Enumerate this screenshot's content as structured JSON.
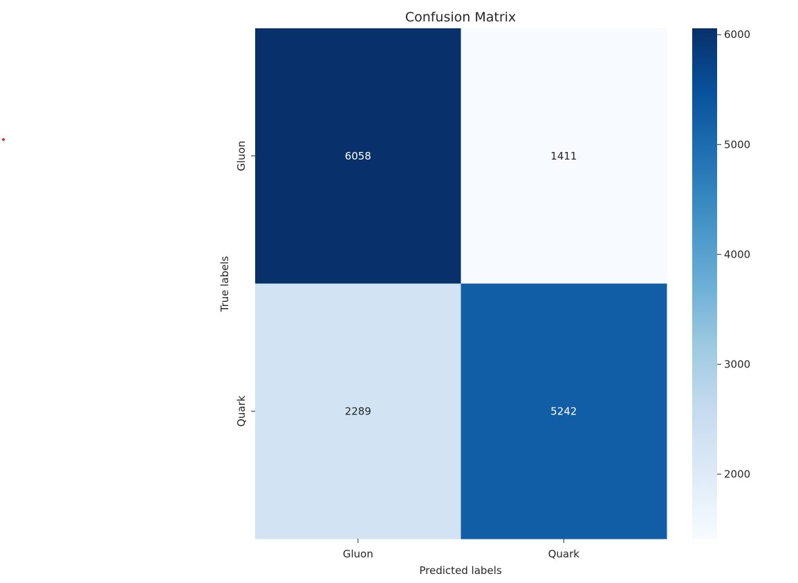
{
  "chart_data": {
    "type": "heatmap",
    "title": "Confusion Matrix",
    "xlabel": "Predicted labels",
    "ylabel": "True labels",
    "x_categories": [
      "Gluon",
      "Quark"
    ],
    "y_categories": [
      "Gluon",
      "Quark"
    ],
    "values": [
      [
        6058,
        1411
      ],
      [
        2289,
        5242
      ]
    ],
    "colormap": "Blues",
    "colorbar": {
      "ticks": [
        2000,
        3000,
        4000,
        5000,
        6000
      ],
      "min": 1411,
      "max": 6058
    }
  },
  "colors": {
    "cmap_light": "#f7fbff",
    "cmap_dark": "#08306b"
  }
}
